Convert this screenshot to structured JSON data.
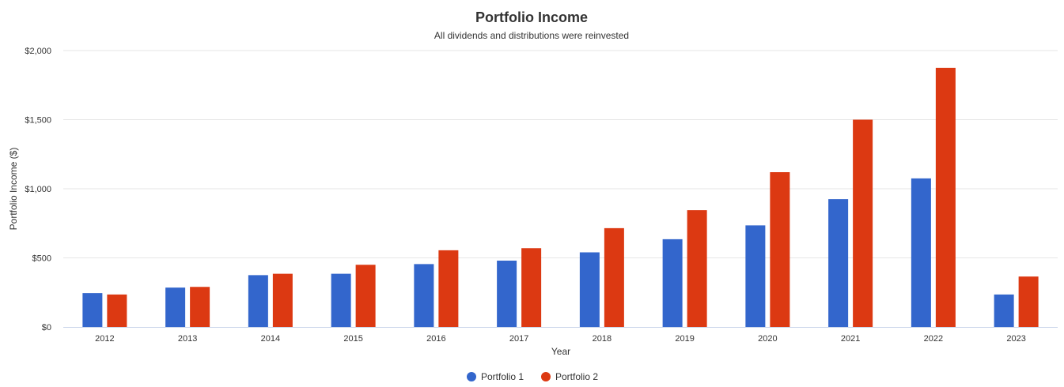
{
  "chart_data": {
    "type": "bar",
    "title": "Portfolio Income",
    "subtitle": "All dividends and distributions were reinvested",
    "xlabel": "Year",
    "ylabel": "Portfolio Income ($)",
    "ylim": [
      0,
      2000
    ],
    "yticks": [
      0,
      500,
      1000,
      1500,
      2000
    ],
    "ytick_labels": [
      "$0",
      "$500",
      "$1,000",
      "$1,500",
      "$2,000"
    ],
    "grid": true,
    "legend_position": "bottom",
    "categories": [
      "2012",
      "2013",
      "2014",
      "2015",
      "2016",
      "2017",
      "2018",
      "2019",
      "2020",
      "2021",
      "2022",
      "2023"
    ],
    "series": [
      {
        "name": "Portfolio 1",
        "color": "#3366cc",
        "values": [
          245,
          285,
          375,
          385,
          455,
          480,
          540,
          635,
          735,
          925,
          1075,
          235
        ]
      },
      {
        "name": "Portfolio 2",
        "color": "#dc3912",
        "values": [
          235,
          290,
          385,
          450,
          555,
          570,
          715,
          845,
          1120,
          1500,
          1875,
          365
        ]
      }
    ]
  }
}
